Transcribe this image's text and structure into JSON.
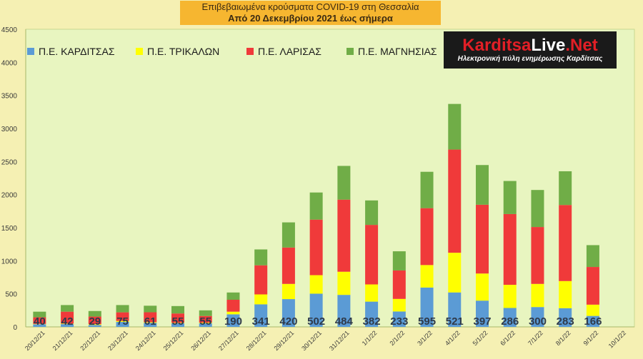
{
  "header": {
    "title": "Επιβεβαιωμένα κρούσματα COVID-19 στη Θεσσαλία",
    "subtitle": "Από 20 Δεκεμβρίου 2021 έως σήμερα"
  },
  "logo": {
    "brand_part1": "Karditsa",
    "brand_part2": "Live",
    "brand_part3": ".Net",
    "tagline": "Ηλεκτρονική πύλη ενημέρωσης Καρδίτσας"
  },
  "chart_data": {
    "type": "bar",
    "stacked": true,
    "ylim": [
      0,
      4500
    ],
    "yticks": [
      0,
      500,
      1000,
      1500,
      2000,
      2500,
      3000,
      3500,
      4000,
      4500
    ],
    "grid": false,
    "legend_position": "top-left",
    "categories": [
      "20/12/21",
      "21/12/21",
      "22/12/21",
      "23/12/21",
      "24/12/21",
      "25/12/21",
      "26/12/21",
      "27/12/21",
      "28/12/21",
      "29/12/21",
      "30/12/21",
      "31/12/21",
      "1/1/22",
      "2/1/22",
      "3/1/22",
      "4/1/22",
      "5/1/22",
      "6/1/22",
      "7/1/22",
      "8/1/22",
      "9/1/22",
      "10/1/22"
    ],
    "series": [
      {
        "name": "Π.Ε. ΚΑΡΔΙΤΣΑΣ",
        "color": "#5b9bd5",
        "values": [
          40,
          42,
          29,
          75,
          61,
          55,
          55,
          190,
          341,
          420,
          502,
          484,
          382,
          233,
          595,
          521,
          397,
          286,
          300,
          283,
          166,
          0
        ]
      },
      {
        "name": "Π.Ε. ΤΡΙΚΑΛΩΝ",
        "color": "#ffff00",
        "values": [
          5,
          8,
          12,
          15,
          10,
          8,
          10,
          40,
          150,
          230,
          280,
          350,
          260,
          190,
          340,
          600,
          410,
          350,
          350,
          410,
          170,
          0
        ]
      },
      {
        "name": "Π.Ε. ΛΑΡΙΣΑΣ",
        "color": "#f03a3a",
        "values": [
          100,
          180,
          115,
          130,
          150,
          140,
          100,
          180,
          440,
          550,
          840,
          1090,
          900,
          430,
          860,
          1560,
          1040,
          1070,
          860,
          1150,
          570,
          0
        ]
      },
      {
        "name": "Π.Ε. ΜΑΓΝΗΣΙΑΣ",
        "color": "#70ad47",
        "values": [
          85,
          100,
          84,
          110,
          99,
          112,
          85,
          110,
          240,
          380,
          410,
          510,
          370,
          290,
          550,
          690,
          600,
          500,
          560,
          510,
          330,
          0
        ]
      }
    ],
    "data_labels": [
      "40",
      "42",
      "29",
      "75",
      "61",
      "55",
      "55",
      "190",
      "341",
      "420",
      "502",
      "484",
      "382",
      "233",
      "595",
      "521",
      "397",
      "286",
      "300",
      "283",
      "166",
      ""
    ]
  }
}
